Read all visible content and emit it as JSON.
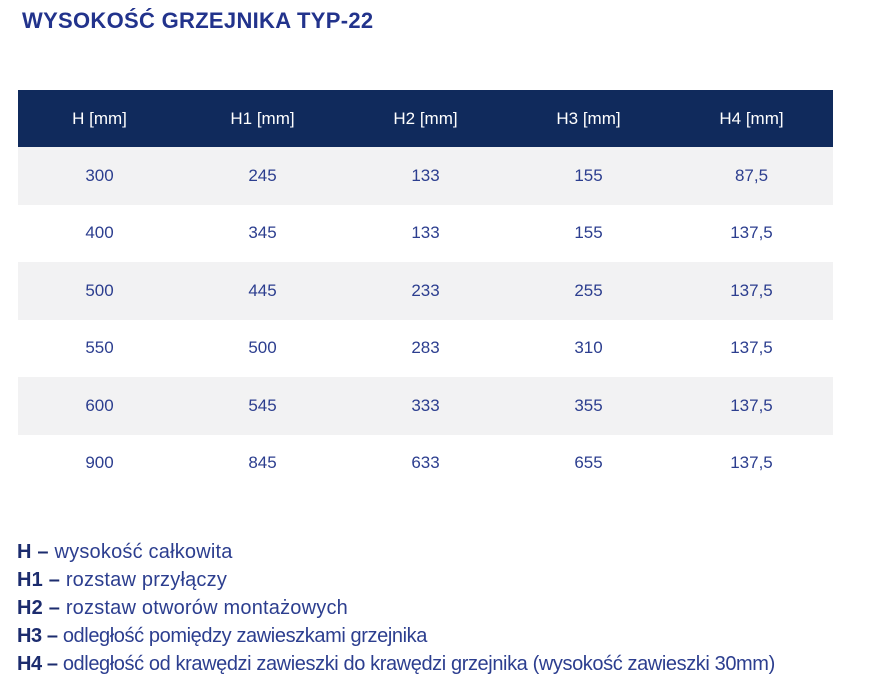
{
  "page": {
    "title": "WYSOKOŚĆ GRZEJNIKA TYP-22"
  },
  "colors": {
    "title_blue": "#22338c",
    "header_navy": "#102a5c",
    "header_text": "#ffffff",
    "cell_text": "#2c3e8f",
    "row_alt_gray": "#f2f2f3",
    "legend_term_navy": "#1c2c6e"
  },
  "table": {
    "headers": [
      "H [mm]",
      "H1 [mm]",
      "H2 [mm]",
      "H3 [mm]",
      "H4 [mm]"
    ],
    "rows": [
      [
        "300",
        "245",
        "133",
        "155",
        "87,5"
      ],
      [
        "400",
        "345",
        "133",
        "155",
        "137,5"
      ],
      [
        "500",
        "445",
        "233",
        "255",
        "137,5"
      ],
      [
        "550",
        "500",
        "283",
        "310",
        "137,5"
      ],
      [
        "600",
        "545",
        "333",
        "355",
        "137,5"
      ],
      [
        "900",
        "845",
        "633",
        "655",
        "137,5"
      ]
    ]
  },
  "legend": {
    "items": [
      {
        "term": "H –",
        "definition": "wysokość całkowita"
      },
      {
        "term": "H1 –",
        "definition": "rozstaw przyłączy"
      },
      {
        "term": "H2 –",
        "definition": "rozstaw otworów montażowych"
      },
      {
        "term": "H3 –",
        "definition": "odległość pomiędzy zawieszkami grzejnika"
      },
      {
        "term": "H4 –",
        "definition": "odległość od krawędzi zawieszki do krawędzi grzejnika (wysokość zawieszki 30mm)"
      }
    ]
  }
}
